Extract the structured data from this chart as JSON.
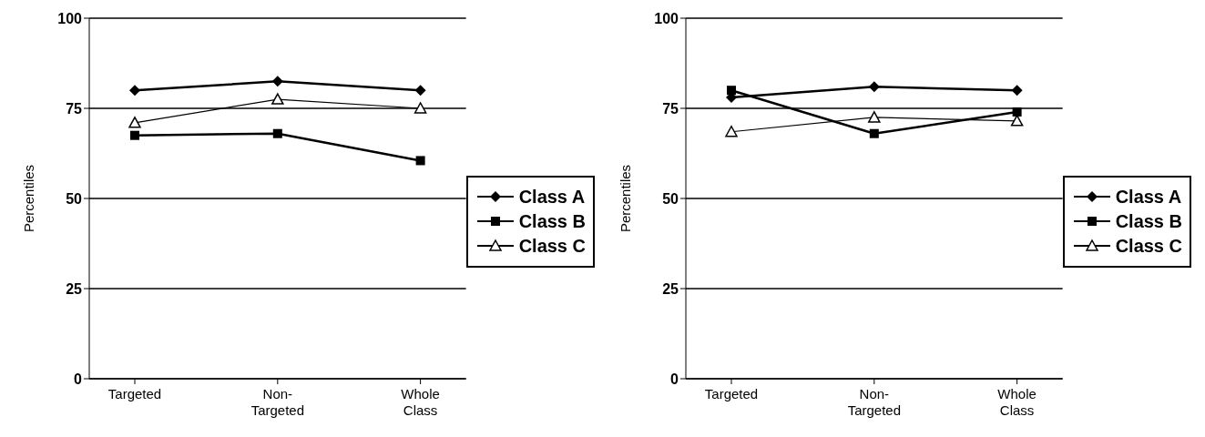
{
  "chart_data": [
    {
      "type": "line",
      "ylabel": "Percentiles",
      "categories": [
        "Targeted",
        "Non-Targeted",
        "Whole Class"
      ],
      "ylim": [
        0,
        100
      ],
      "yticks": [
        0,
        25,
        50,
        75,
        100
      ],
      "grid": "y",
      "legend": "right",
      "series": [
        {
          "name": "Class A",
          "color": "#000000",
          "marker": "diamond",
          "values": [
            80,
            82.5,
            80
          ]
        },
        {
          "name": "Class B",
          "color": "#000000",
          "marker": "square",
          "values": [
            67.5,
            68,
            60.5
          ]
        },
        {
          "name": "Class C",
          "color": "#000000",
          "marker": "triangle",
          "values": [
            71,
            77.5,
            75
          ]
        }
      ]
    },
    {
      "type": "line",
      "ylabel": "Percentiles",
      "categories": [
        "Targeted",
        "Non-Targeted",
        "Whole Class"
      ],
      "ylim": [
        0,
        100
      ],
      "yticks": [
        0,
        25,
        50,
        75,
        100
      ],
      "grid": "y",
      "legend": "right",
      "series": [
        {
          "name": "Class A",
          "color": "#000000",
          "marker": "diamond",
          "values": [
            78,
            81,
            80
          ]
        },
        {
          "name": "Class B",
          "color": "#000000",
          "marker": "square",
          "values": [
            80,
            68,
            74
          ]
        },
        {
          "name": "Class C",
          "color": "#000000",
          "marker": "triangle",
          "values": [
            68.5,
            72.5,
            71.5
          ]
        }
      ]
    }
  ]
}
